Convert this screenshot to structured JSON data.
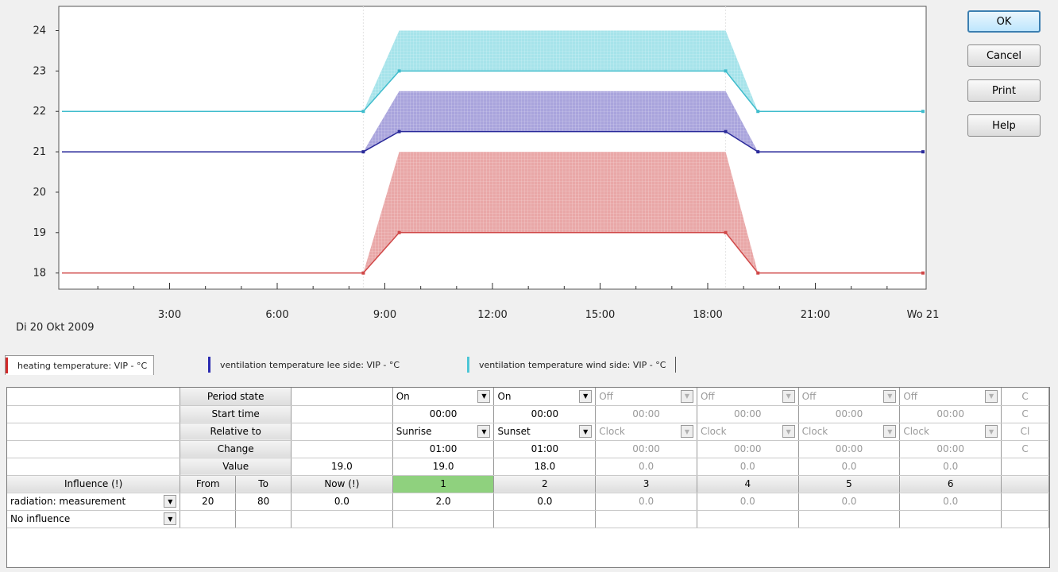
{
  "chart_data": {
    "type": "area",
    "date_label": "Di 20 Okt 2009",
    "x_range": [
      0,
      24
    ],
    "ylim": [
      17.6,
      24.6
    ],
    "y_ticks": [
      18,
      19,
      20,
      21,
      22,
      23,
      24
    ],
    "x_ticks": [
      {
        "value": 3,
        "label": "3:00"
      },
      {
        "value": 6,
        "label": "6:00"
      },
      {
        "value": 9,
        "label": "9:00"
      },
      {
        "value": 12,
        "label": "12:00"
      },
      {
        "value": 15,
        "label": "15:00"
      },
      {
        "value": 18,
        "label": "18:00"
      },
      {
        "value": 21,
        "label": "21:00"
      },
      {
        "value": 24,
        "label": "Wo 21"
      }
    ],
    "series": [
      {
        "name": "heating temperature: VIP - °C",
        "color": "#d04848",
        "fill": "#e9a7a7",
        "x": [
          0,
          8.4,
          9.4,
          18.5,
          19.4,
          24
        ],
        "y": [
          18,
          18,
          19,
          19,
          18,
          18
        ],
        "upper": [
          18,
          18,
          21,
          21,
          18,
          18
        ]
      },
      {
        "name": "ventilation temperature lee side: VIP - °C",
        "color": "#2a2a9a",
        "fill": "#a9a4dc",
        "x": [
          0,
          8.4,
          9.4,
          18.5,
          19.4,
          24
        ],
        "y": [
          21,
          21,
          21.5,
          21.5,
          21,
          21
        ],
        "upper": [
          21,
          21,
          22.5,
          22.5,
          21,
          21
        ]
      },
      {
        "name": "ventilation temperature wind side: VIP - °C",
        "color": "#3fbccc",
        "fill": "#a6e3ea",
        "x": [
          0,
          8.4,
          9.4,
          18.5,
          19.4,
          24
        ],
        "y": [
          22,
          22,
          23,
          23,
          22,
          22
        ],
        "upper": [
          22,
          22,
          24,
          24,
          22,
          22
        ]
      }
    ]
  },
  "buttons": {
    "ok": "OK",
    "cancel": "Cancel",
    "print": "Print",
    "help": "Help"
  },
  "legend": {
    "heating": "heating temperature: VIP - °C",
    "lee": "ventilation temperature lee side: VIP - °C",
    "wind": "ventilation temperature wind side: VIP - °C"
  },
  "grid": {
    "row_labels": {
      "period_state": "Period state",
      "start_time": "Start time",
      "relative_to": "Relative to",
      "change": "Change",
      "value": "Value"
    },
    "base_value": "19.0",
    "header": {
      "influence": "Influence (!)",
      "from": "From",
      "to": "To",
      "now": "Now (!)"
    },
    "periods": [
      {
        "num": "1",
        "state": "On",
        "start": "00:00",
        "relative": "Sunrise",
        "change": "01:00",
        "value": "19.0",
        "infl1": "2.0",
        "active": true
      },
      {
        "num": "2",
        "state": "On",
        "start": "00:00",
        "relative": "Sunset",
        "change": "01:00",
        "value": "18.0",
        "infl1": "0.0",
        "active": true
      },
      {
        "num": "3",
        "state": "Off",
        "start": "00:00",
        "relative": "Clock",
        "change": "00:00",
        "value": "0.0",
        "infl1": "0.0",
        "active": false
      },
      {
        "num": "4",
        "state": "Off",
        "start": "00:00",
        "relative": "Clock",
        "change": "00:00",
        "value": "0.0",
        "infl1": "0.0",
        "active": false
      },
      {
        "num": "5",
        "state": "Off",
        "start": "00:00",
        "relative": "Clock",
        "change": "00:00",
        "value": "0.0",
        "infl1": "0.0",
        "active": false
      },
      {
        "num": "6",
        "state": "Off",
        "start": "00:00",
        "relative": "Clock",
        "change": "00:00",
        "value": "0.0",
        "infl1": "0.0",
        "active": false
      },
      {
        "num": "",
        "state": "C",
        "start": "C",
        "relative": "Cl",
        "change": "C",
        "value": "",
        "infl1": "",
        "active": false
      }
    ],
    "influences": [
      {
        "label": "radiation: measurement",
        "from": "20",
        "to": "80",
        "now": "0.0"
      },
      {
        "label": "No influence",
        "from": "",
        "to": "",
        "now": ""
      }
    ]
  }
}
